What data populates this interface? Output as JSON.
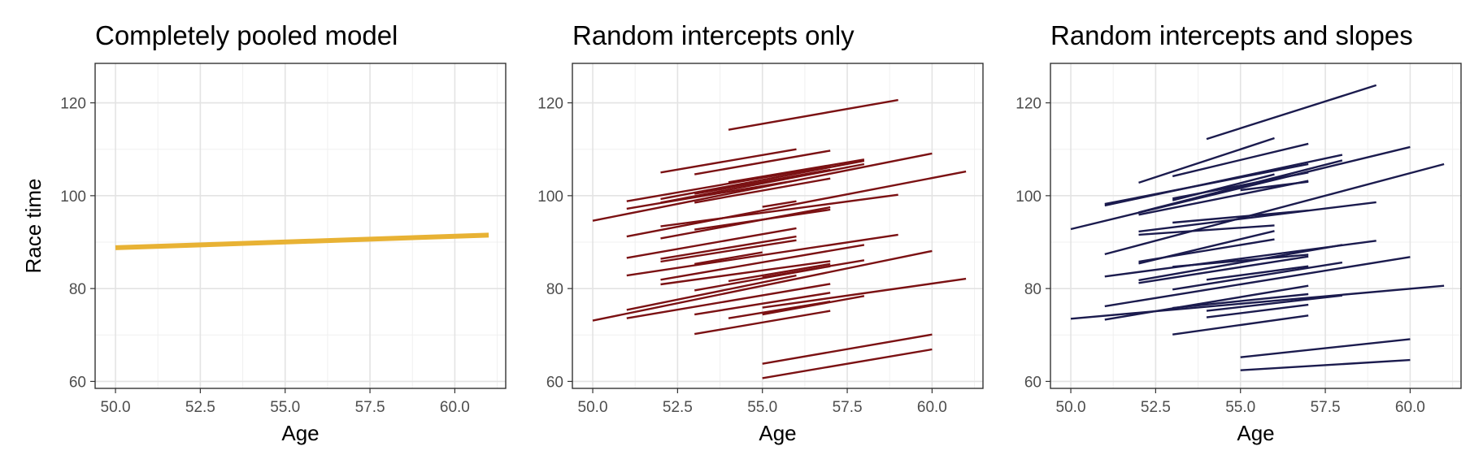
{
  "figure": {
    "ylabel": "Race time"
  },
  "chart_data": [
    {
      "type": "line",
      "title": "Completely pooled model",
      "xlabel": "Age",
      "ylabel": "Race time",
      "xlim": [
        49.4,
        61.5
      ],
      "ylim": [
        58.5,
        128.5
      ],
      "x_ticks": [
        "50.0",
        "52.5",
        "55.0",
        "57.5",
        "60.0"
      ],
      "y_ticks": [
        "60",
        "80",
        "100",
        "120"
      ],
      "grid": true,
      "color": "#E8B234",
      "series": [
        {
          "x": [
            50,
            61
          ],
          "y": [
            88.8,
            91.5
          ]
        }
      ]
    },
    {
      "type": "line",
      "title": "Random intercepts only",
      "xlabel": "Age",
      "ylabel": "Race time",
      "xlim": [
        49.4,
        61.5
      ],
      "ylim": [
        58.5,
        128.5
      ],
      "x_ticks": [
        "50.0",
        "52.5",
        "55.0",
        "57.5",
        "60.0"
      ],
      "y_ticks": [
        "60",
        "80",
        "100",
        "120"
      ],
      "grid": true,
      "color": "#7B1113",
      "series": [
        {
          "x": [
            54,
            59
          ],
          "y": [
            114.2,
            120.6
          ]
        },
        {
          "x": [
            52,
            56
          ],
          "y": [
            105.0,
            110.0
          ]
        },
        {
          "x": [
            53,
            57
          ],
          "y": [
            104.6,
            109.7
          ]
        },
        {
          "x": [
            54,
            58
          ],
          "y": [
            102.9,
            107.8
          ]
        },
        {
          "x": [
            50,
            60
          ],
          "y": [
            94.6,
            109.1
          ]
        },
        {
          "x": [
            51,
            61
          ],
          "y": [
            91.2,
            105.2
          ]
        },
        {
          "x": [
            51,
            57
          ],
          "y": [
            98.8,
            106.4
          ]
        },
        {
          "x": [
            51,
            56
          ],
          "y": [
            97.2,
            103.3
          ]
        },
        {
          "x": [
            52,
            58
          ],
          "y": [
            98.5,
            106.8
          ]
        },
        {
          "x": [
            52,
            58
          ],
          "y": [
            99.3,
            107.5
          ]
        },
        {
          "x": [
            53,
            57
          ],
          "y": [
            100.4,
            105.6
          ]
        },
        {
          "x": [
            53,
            57
          ],
          "y": [
            98.5,
            103.7
          ]
        },
        {
          "x": [
            52,
            59
          ],
          "y": [
            93.4,
            100.2
          ]
        },
        {
          "x": [
            55,
            56
          ],
          "y": [
            97.6,
            98.8
          ]
        },
        {
          "x": [
            52,
            57
          ],
          "y": [
            90.8,
            97.5
          ]
        },
        {
          "x": [
            53,
            57
          ],
          "y": [
            92.7,
            97.0
          ]
        },
        {
          "x": [
            51,
            56
          ],
          "y": [
            86.6,
            93.0
          ]
        },
        {
          "x": [
            51,
            59
          ],
          "y": [
            82.8,
            91.6
          ]
        },
        {
          "x": [
            52,
            56
          ],
          "y": [
            86.4,
            91.2
          ]
        },
        {
          "x": [
            52,
            56
          ],
          "y": [
            85.8,
            90.4
          ]
        },
        {
          "x": [
            53,
            55
          ],
          "y": [
            85.3,
            87.8
          ]
        },
        {
          "x": [
            52,
            58
          ],
          "y": [
            81.9,
            89.4
          ]
        },
        {
          "x": [
            52,
            57
          ],
          "y": [
            80.9,
            85.9
          ]
        },
        {
          "x": [
            53,
            57
          ],
          "y": [
            79.6,
            84.8
          ]
        },
        {
          "x": [
            54,
            57
          ],
          "y": [
            81.6,
            85.3
          ]
        },
        {
          "x": [
            55,
            58
          ],
          "y": [
            82.4,
            86.1
          ]
        },
        {
          "x": [
            50,
            60
          ],
          "y": [
            73.1,
            88.1
          ]
        },
        {
          "x": [
            55,
            61
          ],
          "y": [
            75.9,
            82.1
          ]
        },
        {
          "x": [
            51,
            56
          ],
          "y": [
            75.4,
            82.8
          ]
        },
        {
          "x": [
            51,
            57
          ],
          "y": [
            73.6,
            81.0
          ]
        },
        {
          "x": [
            53,
            57
          ],
          "y": [
            74.4,
            79.1
          ]
        },
        {
          "x": [
            54,
            57
          ],
          "y": [
            73.6,
            77.2
          ]
        },
        {
          "x": [
            55,
            58
          ],
          "y": [
            74.4,
            78.4
          ]
        },
        {
          "x": [
            53,
            57
          ],
          "y": [
            70.2,
            75.2
          ]
        },
        {
          "x": [
            55,
            60
          ],
          "y": [
            63.8,
            70.1
          ]
        },
        {
          "x": [
            55,
            60
          ],
          "y": [
            60.7,
            66.9
          ]
        }
      ]
    },
    {
      "type": "line",
      "title": "Random intercepts and slopes",
      "xlabel": "Age",
      "ylabel": "Race time",
      "xlim": [
        49.4,
        61.5
      ],
      "ylim": [
        58.5,
        128.5
      ],
      "x_ticks": [
        "50.0",
        "52.5",
        "55.0",
        "57.5",
        "60.0"
      ],
      "y_ticks": [
        "60",
        "80",
        "100",
        "120"
      ],
      "grid": true,
      "color": "#1B1B4E",
      "series": [
        {
          "x": [
            54,
            59
          ],
          "y": [
            112.2,
            123.8
          ]
        },
        {
          "x": [
            52,
            56
          ],
          "y": [
            102.8,
            112.4
          ]
        },
        {
          "x": [
            53,
            57
          ],
          "y": [
            104.2,
            111.2
          ]
        },
        {
          "x": [
            51,
            58
          ],
          "y": [
            97.9,
            108.8
          ]
        },
        {
          "x": [
            50,
            60
          ],
          "y": [
            92.8,
            110.5
          ]
        },
        {
          "x": [
            51,
            61
          ],
          "y": [
            87.4,
            106.8
          ]
        },
        {
          "x": [
            51,
            57
          ],
          "y": [
            98.2,
            106.8
          ]
        },
        {
          "x": [
            52,
            58
          ],
          "y": [
            96.4,
            107.6
          ]
        },
        {
          "x": [
            53,
            57
          ],
          "y": [
            99.4,
            105.0
          ]
        },
        {
          "x": [
            53,
            56
          ],
          "y": [
            99.0,
            104.6
          ]
        },
        {
          "x": [
            52,
            57
          ],
          "y": [
            95.9,
            103.2
          ]
        },
        {
          "x": [
            55,
            57
          ],
          "y": [
            101.2,
            103.0
          ]
        },
        {
          "x": [
            52,
            59
          ],
          "y": [
            92.3,
            98.6
          ]
        },
        {
          "x": [
            53,
            57
          ],
          "y": [
            94.2,
            96.8
          ]
        },
        {
          "x": [
            52,
            56
          ],
          "y": [
            91.6,
            93.6
          ]
        },
        {
          "x": [
            52,
            56
          ],
          "y": [
            85.4,
            92.4
          ]
        },
        {
          "x": [
            51,
            59
          ],
          "y": [
            82.6,
            90.3
          ]
        },
        {
          "x": [
            52,
            56
          ],
          "y": [
            85.8,
            90.6
          ]
        },
        {
          "x": [
            52,
            57
          ],
          "y": [
            81.2,
            86.9
          ]
        },
        {
          "x": [
            52,
            58
          ],
          "y": [
            81.8,
            89.4
          ]
        },
        {
          "x": [
            53,
            57
          ],
          "y": [
            84.7,
            87.3
          ]
        },
        {
          "x": [
            53,
            58
          ],
          "y": [
            79.8,
            85.6
          ]
        },
        {
          "x": [
            54,
            57
          ],
          "y": [
            81.9,
            84.8
          ]
        },
        {
          "x": [
            51,
            60
          ],
          "y": [
            76.2,
            86.8
          ]
        },
        {
          "x": [
            50,
            61
          ],
          "y": [
            73.5,
            80.6
          ]
        },
        {
          "x": [
            51,
            57
          ],
          "y": [
            73.3,
            80.6
          ]
        },
        {
          "x": [
            53,
            57
          ],
          "y": [
            75.8,
            78.8
          ]
        },
        {
          "x": [
            54,
            58
          ],
          "y": [
            75.2,
            78.5
          ]
        },
        {
          "x": [
            54,
            57
          ],
          "y": [
            73.8,
            76.5
          ]
        },
        {
          "x": [
            53,
            57
          ],
          "y": [
            70.1,
            74.2
          ]
        },
        {
          "x": [
            55,
            60
          ],
          "y": [
            65.2,
            69.1
          ]
        },
        {
          "x": [
            55,
            60
          ],
          "y": [
            62.4,
            64.6
          ]
        }
      ]
    }
  ]
}
